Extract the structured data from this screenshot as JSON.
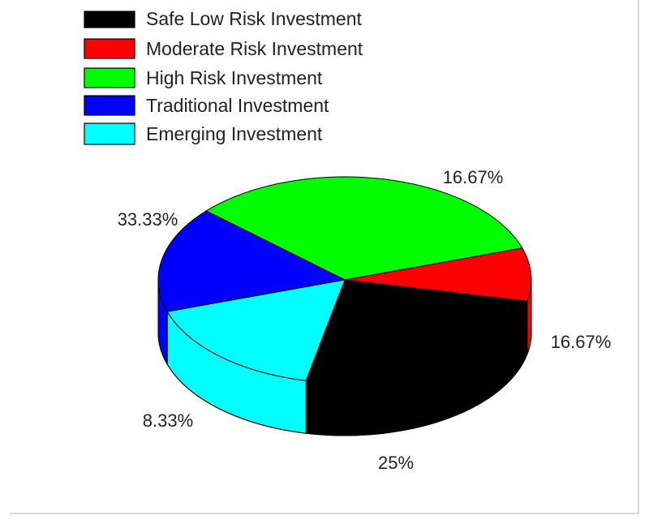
{
  "chart_data": {
    "type": "pie",
    "title": "",
    "series": [
      {
        "name": "Safe Low Risk Investment",
        "value": 25,
        "label": "25%",
        "color": "#000000"
      },
      {
        "name": "Moderate Risk Investment",
        "value": 8.33,
        "label": "8.33%",
        "color": "#ff0000"
      },
      {
        "name": "High Risk Investment",
        "value": 33.33,
        "label": "33.33%",
        "color": "#00ff00"
      },
      {
        "name": "Traditional Investment",
        "value": 16.67,
        "label": "16.67%",
        "color": "#0000ff"
      },
      {
        "name": "Emerging Investment",
        "value": 16.67,
        "label": "16.67%",
        "color": "#00ffff"
      }
    ],
    "legend_position": "top-left",
    "style": "3d"
  }
}
